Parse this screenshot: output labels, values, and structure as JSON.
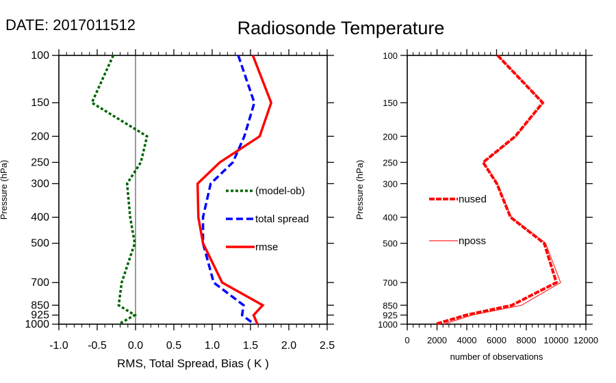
{
  "header": {
    "date_label": "DATE: 2017011512",
    "title": "Radiosonde Temperature"
  },
  "chart_data": [
    {
      "type": "line",
      "title": "Radiosonde Temperature",
      "xlabel": "RMS, Total Spread, Bias ( K )",
      "ylabel": "Pressure (hPa)",
      "xlim": [
        -1.0,
        2.5
      ],
      "ylim": [
        1000,
        100
      ],
      "yscale": "log",
      "xticks": [
        "-1.0",
        "-0.5",
        "0.0",
        "0.5",
        "1.0",
        "1.5",
        "2.0",
        "2.5"
      ],
      "xtick_values": [
        -1.0,
        -0.5,
        0.0,
        0.5,
        1.0,
        1.5,
        2.0,
        2.5
      ],
      "yticks": [
        "100",
        "150",
        "200",
        "250",
        "300",
        "400",
        "500",
        "700",
        "850",
        "925",
        "1000"
      ],
      "y": [
        100,
        150,
        200,
        250,
        300,
        400,
        500,
        700,
        850,
        925,
        1000
      ],
      "zero_line": 0.0,
      "legend_position": "right-middle",
      "series": [
        {
          "name": "(model-ob)",
          "color": "#006400",
          "style": "dotted",
          "values": [
            -0.29,
            -0.57,
            0.15,
            0.07,
            -0.11,
            -0.07,
            -0.01,
            -0.18,
            -0.22,
            -0.01,
            -0.22
          ]
        },
        {
          "name": "total spread",
          "color": "#0000ff",
          "style": "dashed",
          "values": [
            1.34,
            1.55,
            1.42,
            1.27,
            0.98,
            0.88,
            0.88,
            1.02,
            1.41,
            1.39,
            1.55
          ]
        },
        {
          "name": "rmse",
          "color": "#ff0000",
          "style": "solid",
          "values": [
            1.53,
            1.77,
            1.62,
            1.1,
            0.81,
            0.82,
            0.88,
            1.13,
            1.66,
            1.54,
            1.59
          ]
        }
      ]
    },
    {
      "type": "line",
      "title": "",
      "xlabel": "number of observations",
      "ylabel": "Pressure (hPa)",
      "xlim": [
        0,
        12000
      ],
      "ylim": [
        1000,
        100
      ],
      "yscale": "log",
      "xticks": [
        "0",
        "2000",
        "4000",
        "6000",
        "8000",
        "10000",
        "12000"
      ],
      "xtick_values": [
        0,
        2000,
        4000,
        6000,
        8000,
        10000,
        12000
      ],
      "yticks": [
        "100",
        "150",
        "200",
        "250",
        "300",
        "400",
        "500",
        "700",
        "850",
        "925",
        "1000"
      ],
      "y": [
        100,
        150,
        200,
        250,
        300,
        400,
        500,
        700,
        850,
        925,
        1000
      ],
      "legend_position": "left-middle",
      "series": [
        {
          "name": "nused",
          "color": "#ff0000",
          "style": "dashed",
          "values": [
            6070,
            9100,
            7260,
            5100,
            6020,
            6940,
            9200,
            10020,
            7030,
            3950,
            1890
          ]
        },
        {
          "name": "nposs",
          "color": "#ff0000",
          "style": "thin",
          "values": [
            6070,
            9150,
            7300,
            5120,
            6050,
            6980,
            9290,
            10300,
            7680,
            4370,
            2440
          ]
        }
      ]
    }
  ]
}
